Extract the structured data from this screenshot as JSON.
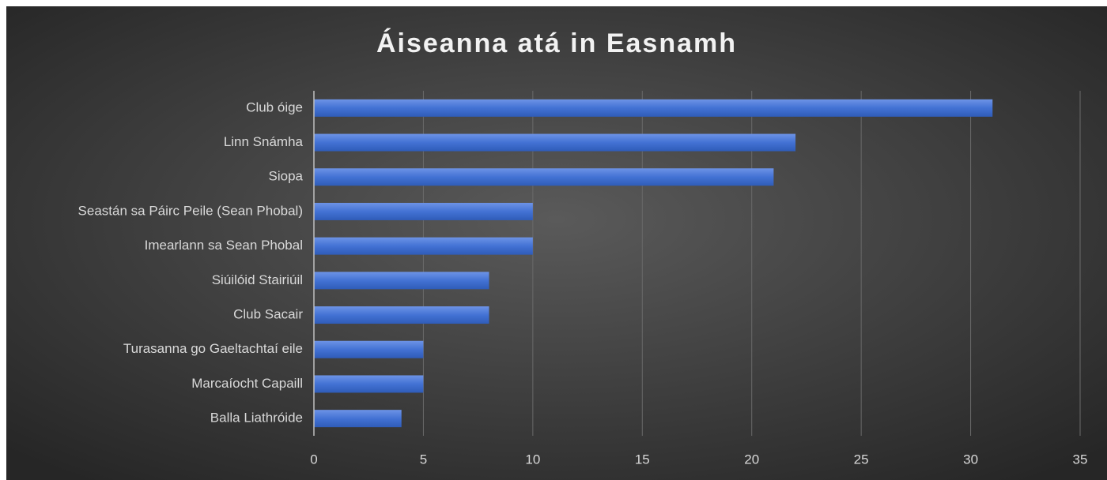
{
  "chart_data": {
    "type": "bar",
    "orientation": "horizontal",
    "title": "Áiseanna atá in Easnamh",
    "categories": [
      "Club óige",
      "Linn Snámha",
      "Siopa",
      "Seastán sa Páirc Peile (Sean Phobal)",
      "Imearlann sa Sean Phobal",
      "Siúilóid Stairiúil",
      "Club Sacair",
      "Turasanna go Gaeltachtaí eile",
      "Marcaíocht Capaill",
      "Balla Liathróide"
    ],
    "values": [
      31,
      22,
      21,
      10,
      10,
      8,
      8,
      5,
      5,
      4
    ],
    "color": "#4a78d6",
    "xlim": [
      0,
      35
    ],
    "xticks": [
      0,
      5,
      10,
      15,
      20,
      25,
      30,
      35
    ],
    "grid": true
  }
}
